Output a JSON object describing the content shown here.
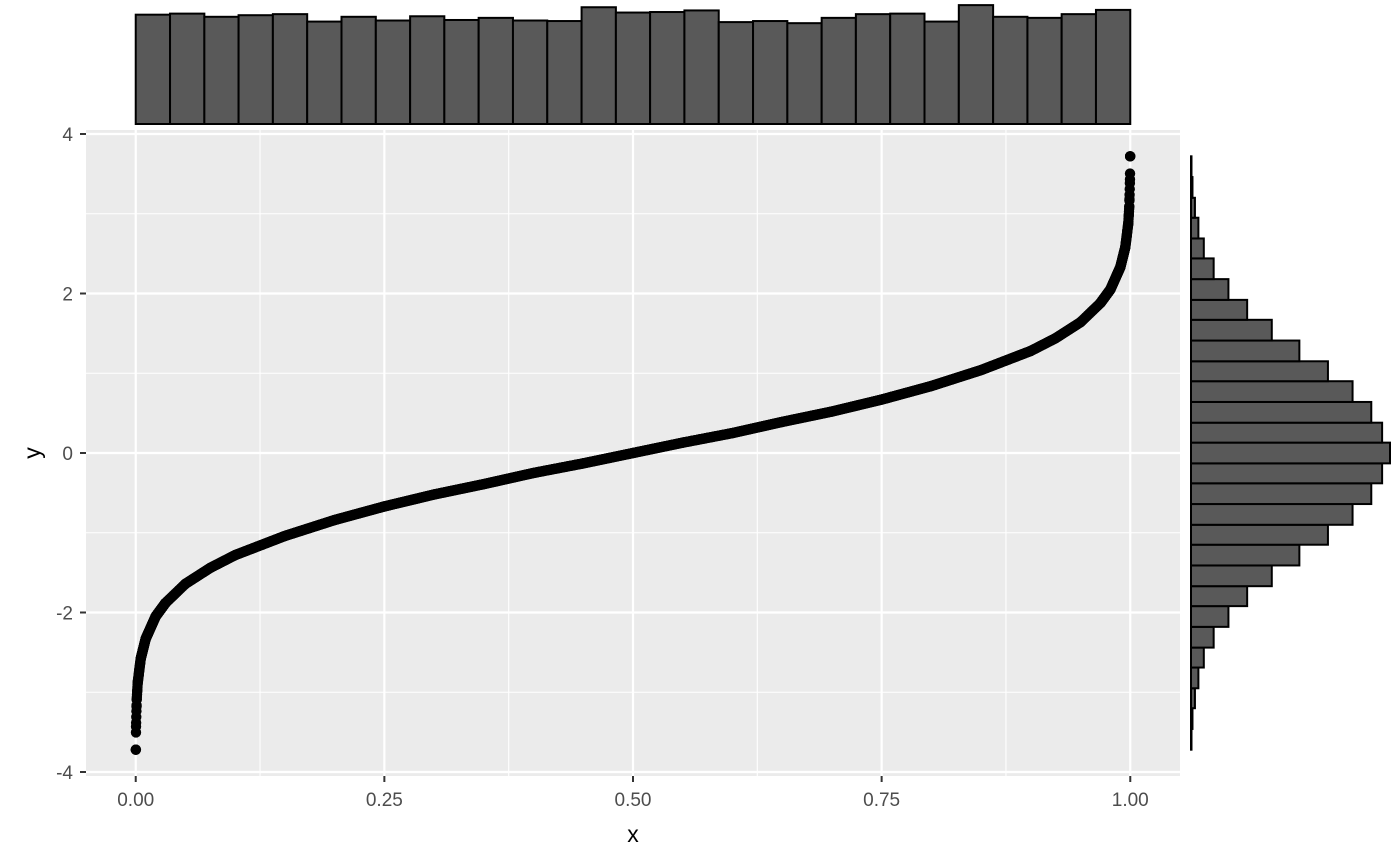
{
  "chart_data": {
    "type": "scatter",
    "title": "",
    "xlabel": "x",
    "ylabel": "y",
    "xlim": [
      -0.05,
      1.05
    ],
    "ylim": [
      -4.05,
      4.05
    ],
    "x_ticks": [
      0.0,
      0.25,
      0.5,
      0.75,
      1.0
    ],
    "x_tick_labels": [
      "0.00",
      "0.25",
      "0.50",
      "0.75",
      "1.00"
    ],
    "y_ticks": [
      4,
      2,
      0,
      -2,
      -4
    ],
    "y_tick_labels": [
      "4",
      "2",
      "0",
      "-2",
      "-4"
    ],
    "grid": true,
    "legend": "none",
    "series": [
      {
        "x": [
          0.0001,
          0.0003,
          0.001,
          0.002,
          0.005,
          0.01,
          0.02,
          0.03,
          0.05,
          0.075,
          0.1,
          0.15,
          0.2,
          0.25,
          0.3,
          0.35,
          0.4,
          0.45,
          0.5,
          0.55,
          0.6,
          0.65,
          0.7,
          0.75,
          0.8,
          0.85,
          0.9,
          0.925,
          0.95,
          0.97,
          0.98,
          0.99,
          0.995,
          0.998,
          0.999,
          0.9997,
          0.9999
        ],
        "y": [
          -3.72,
          -3.43,
          -3.09,
          -2.88,
          -2.58,
          -2.33,
          -2.05,
          -1.88,
          -1.64,
          -1.44,
          -1.28,
          -1.04,
          -0.84,
          -0.67,
          -0.52,
          -0.39,
          -0.25,
          -0.13,
          0.0,
          0.13,
          0.25,
          0.39,
          0.52,
          0.67,
          0.84,
          1.04,
          1.28,
          1.44,
          1.64,
          1.88,
          2.05,
          2.33,
          2.58,
          2.88,
          3.09,
          3.43,
          3.72
        ]
      }
    ],
    "marginal_x_histogram": {
      "type": "bar",
      "bin_edges": [
        0.0,
        0.0345,
        0.069,
        0.1034,
        0.1379,
        0.1724,
        0.2069,
        0.2414,
        0.2759,
        0.3103,
        0.3448,
        0.3793,
        0.4138,
        0.4483,
        0.4828,
        0.5172,
        0.5517,
        0.5862,
        0.6207,
        0.6552,
        0.6897,
        0.7241,
        0.7586,
        0.7931,
        0.8276,
        0.8621,
        0.8966,
        0.931,
        0.9655,
        1.0
      ],
      "counts": [
        1030,
        1040,
        1010,
        1025,
        1035,
        965,
        1010,
        975,
        1015,
        980,
        1000,
        975,
        970,
        1100,
        1050,
        1055,
        1070,
        960,
        970,
        950,
        1000,
        1035,
        1040,
        965,
        1120,
        1010,
        1000,
        1035,
        1075
      ],
      "ylim": [
        0,
        1140
      ]
    },
    "marginal_y_histogram": {
      "type": "bar",
      "orientation": "horizontal",
      "bin_edges": [
        -3.72,
        -3.46,
        -3.2,
        -2.95,
        -2.69,
        -2.44,
        -2.18,
        -1.92,
        -1.67,
        -1.41,
        -1.15,
        -0.9,
        -0.64,
        -0.38,
        -0.13,
        0.13,
        0.38,
        0.64,
        0.9,
        1.15,
        1.41,
        1.67,
        1.92,
        2.18,
        2.44,
        2.69,
        2.95,
        3.2,
        3.46,
        3.72
      ],
      "counts": [
        5,
        15,
        40,
        75,
        130,
        230,
        380,
        570,
        820,
        1100,
        1390,
        1640,
        1830,
        1940,
        2020,
        1940,
        1830,
        1640,
        1390,
        1100,
        820,
        570,
        380,
        230,
        130,
        75,
        40,
        15,
        5
      ],
      "xlim": [
        0,
        2020
      ]
    }
  }
}
